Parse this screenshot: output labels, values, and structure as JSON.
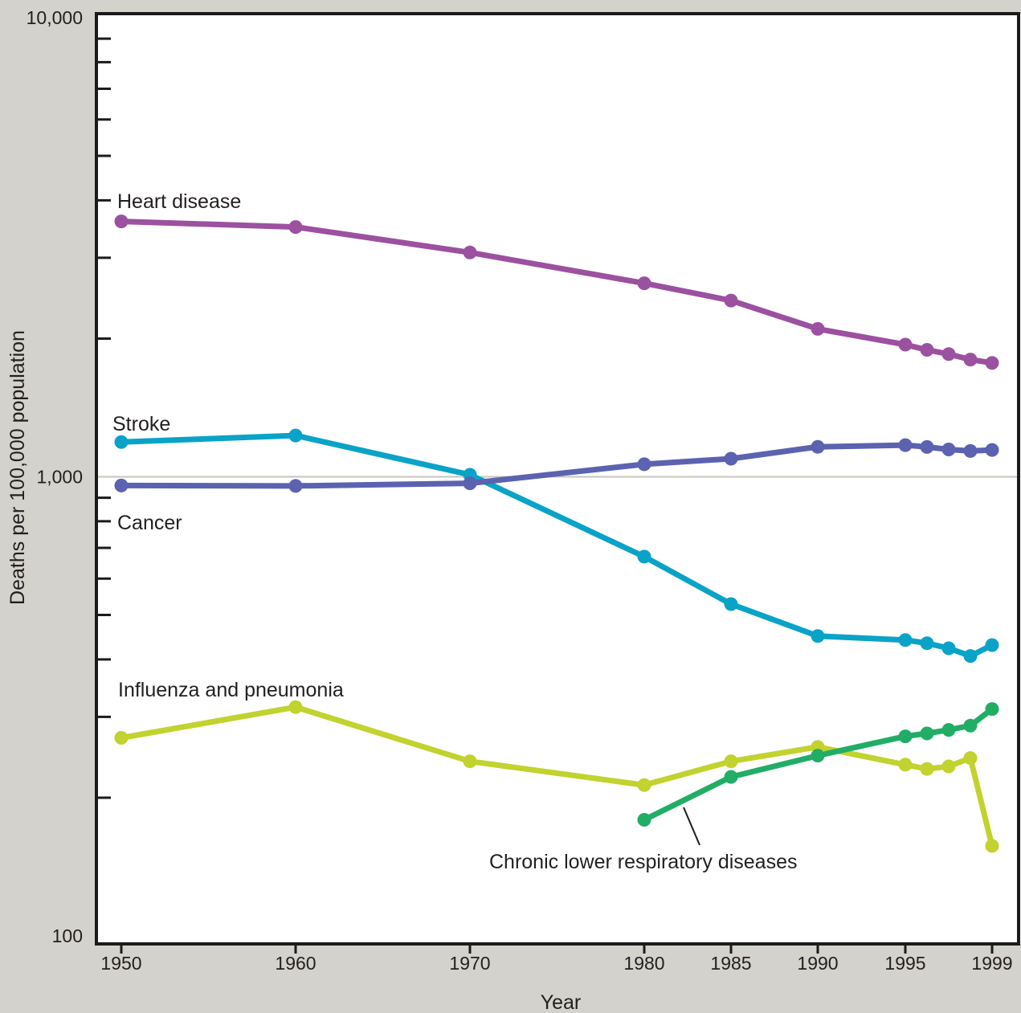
{
  "chart_data": {
    "type": "line",
    "title": "",
    "xlabel": "Year",
    "ylabel": "Deaths per 100,000 population",
    "yscale": "log",
    "ylim": [
      100,
      10000
    ],
    "y_tick_labels": [
      "100",
      "1,000",
      "10,000"
    ],
    "x_tick_labels": [
      "1950",
      "1960",
      "1970",
      "1980",
      "1985",
      "1990",
      "1995",
      "1999"
    ],
    "x_tick_positions": [
      1950,
      1960,
      1970,
      1980,
      1985,
      1990,
      1995,
      1999
    ],
    "reference_line_y": 1000,
    "legend": "none (direct labels)",
    "series": [
      {
        "name": "Heart disease",
        "color": "#9b51a0",
        "x": [
          1950,
          1960,
          1970,
          1980,
          1985,
          1990,
          1995,
          1996,
          1997,
          1998,
          1999
        ],
        "y": [
          3600,
          3500,
          3080,
          2640,
          2420,
          2100,
          1940,
          1890,
          1850,
          1800,
          1770
        ]
      },
      {
        "name": "Stroke",
        "color": "#0aa3c8",
        "x": [
          1950,
          1960,
          1970,
          1980,
          1985,
          1990,
          1995,
          1996,
          1997,
          1998,
          1999
        ],
        "y": [
          1190,
          1230,
          1010,
          670,
          528,
          450,
          441,
          434,
          423,
          407,
          430
        ]
      },
      {
        "name": "Cancer",
        "color": "#5b62b0",
        "x": [
          1950,
          1960,
          1970,
          1980,
          1985,
          1990,
          1995,
          1996,
          1997,
          1998,
          1999
        ],
        "y": [
          957,
          955,
          968,
          1065,
          1095,
          1162,
          1172,
          1161,
          1147,
          1138,
          1144
        ]
      },
      {
        "name": "Influenza and pneumonia",
        "color": "#c2d22e",
        "x": [
          1950,
          1960,
          1970,
          1980,
          1985,
          1990,
          1995,
          1996,
          1997,
          1998,
          1999
        ],
        "y": [
          270,
          315,
          240,
          213,
          240,
          258,
          236,
          231,
          234,
          244,
          157
        ]
      },
      {
        "name": "Chronic lower respiratory diseases",
        "color": "#22ad66",
        "x": [
          1980,
          1985,
          1990,
          1995,
          1996,
          1997,
          1998,
          1999
        ],
        "y": [
          179,
          222,
          247,
          272,
          276,
          281,
          287,
          312
        ]
      }
    ]
  }
}
